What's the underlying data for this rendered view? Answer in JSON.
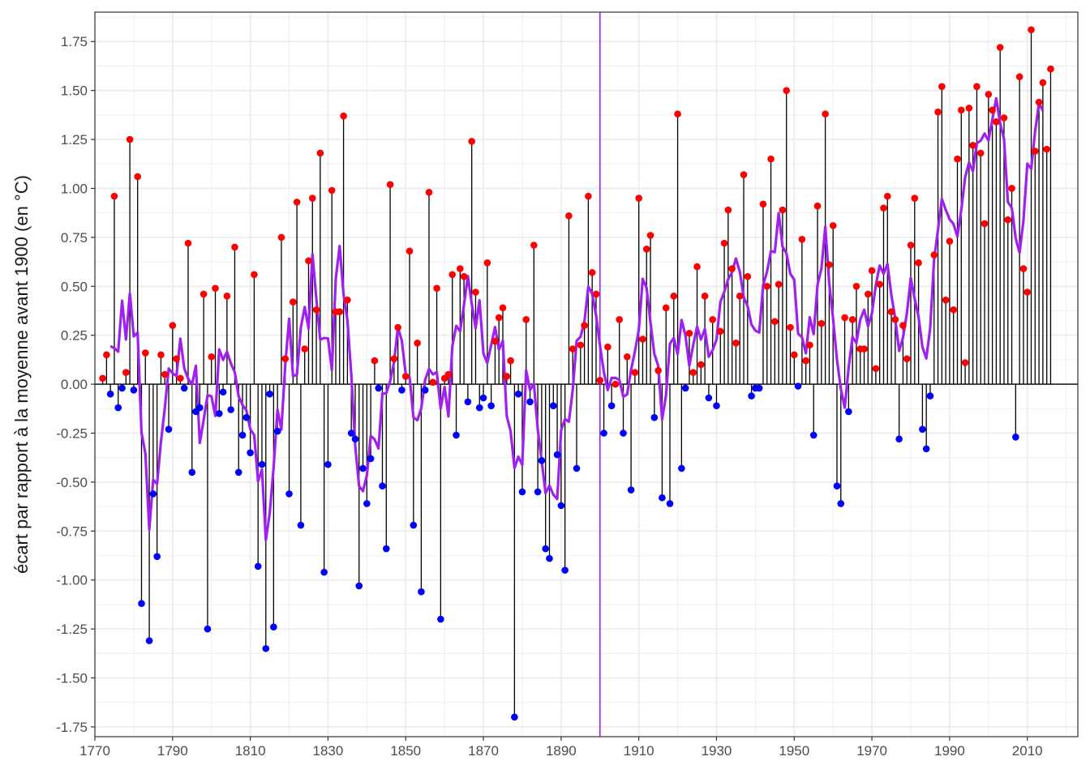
{
  "chart_data": {
    "type": "lollipop",
    "title": "",
    "xlabel": "",
    "ylabel": "écart par rapport à la moyenne avant 1900 (en °C)",
    "xlim": [
      1770,
      2023
    ],
    "ylim": [
      -1.8,
      1.9
    ],
    "x_ticks": [
      "1770",
      "1790",
      "1810",
      "1830",
      "1850",
      "1870",
      "1890",
      "1910",
      "1930",
      "1950",
      "1970",
      "1990",
      "2010"
    ],
    "y_ticks": [
      "1.75",
      "1.50",
      "1.25",
      "1.00",
      "0.75",
      "0.50",
      "0.25",
      "0.00",
      "-0.25",
      "-0.50",
      "-0.75",
      "-1.00",
      "-1.25",
      "-1.50",
      "-1.75"
    ],
    "reference_year": 1900,
    "grid": true,
    "colors": {
      "positive": "#ff0000",
      "negative": "#0000ff",
      "stem": "#000000",
      "moving_average": "#a020f0",
      "reference_line": "#a020f0",
      "grid": "#ebebeb"
    },
    "moving_average_window": 5,
    "years_start": 1772,
    "values": [
      0.03,
      0.15,
      -0.05,
      0.96,
      -0.12,
      -0.02,
      0.06,
      1.25,
      -0.03,
      1.06,
      -1.12,
      0.16,
      -1.31,
      -0.56,
      -0.88,
      0.15,
      0.05,
      -0.23,
      0.3,
      0.13,
      0.03,
      -0.02,
      0.72,
      -0.45,
      -0.14,
      -0.12,
      0.46,
      -1.25,
      0.14,
      0.49,
      -0.15,
      -0.04,
      0.45,
      -0.13,
      0.7,
      -0.45,
      -0.26,
      -0.17,
      -0.35,
      0.56,
      -0.93,
      -0.41,
      -1.35,
      -0.05,
      -1.24,
      -0.24,
      0.75,
      0.13,
      -0.56,
      0.42,
      0.93,
      -0.72,
      0.18,
      0.63,
      0.95,
      0.38,
      1.18,
      -0.96,
      -0.41,
      0.99,
      0.37,
      0.37,
      1.37,
      0.43,
      -0.25,
      -0.28,
      -1.03,
      -0.43,
      -0.61,
      -0.38,
      0.12,
      -0.02,
      -0.52,
      -0.84,
      1.02,
      0.13,
      0.29,
      -0.03,
      0.04,
      0.68,
      -0.72,
      0.21,
      -1.06,
      -0.03,
      0.98,
      0.01,
      0.49,
      -1.2,
      0.03,
      0.05,
      0.56,
      -0.26,
      0.59,
      0.55,
      -0.09,
      1.24,
      0.47,
      -0.12,
      -0.07,
      0.62,
      -0.11,
      0.22,
      0.34,
      0.39,
      0.04,
      0.12,
      -1.7,
      -0.05,
      -0.55,
      0.33,
      -0.09,
      0.71,
      -0.55,
      -0.39,
      -0.84,
      -0.89,
      -0.11,
      -0.36,
      -0.62,
      -0.95,
      0.86,
      0.18,
      -0.43,
      0.2,
      0.3,
      0.96,
      0.57,
      0.46,
      0.02,
      -0.25,
      0.19,
      -0.11,
      0.0,
      0.33,
      -0.25,
      0.14,
      -0.54,
      0.06,
      0.95,
      0.23,
      0.69,
      0.76,
      -0.17,
      0.07,
      -0.58,
      0.39,
      -0.61,
      0.45,
      1.38,
      -0.43,
      -0.02,
      0.26,
      0.06,
      0.6,
      0.1,
      0.45,
      -0.07,
      0.33,
      -0.11,
      0.27,
      0.72,
      0.89,
      0.59,
      0.21,
      0.45,
      1.07,
      0.55,
      -0.06,
      -0.02,
      -0.02,
      0.92,
      0.5,
      1.15,
      0.32,
      0.51,
      0.89,
      1.5,
      0.29,
      0.15,
      -0.01,
      0.74,
      0.12,
      0.2,
      -0.26,
      0.91,
      0.31,
      1.38,
      0.61,
      0.81,
      -0.52,
      -0.61,
      0.34,
      -0.14,
      0.33,
      0.5,
      0.18,
      0.18,
      0.46,
      0.58,
      0.08,
      0.51,
      0.9,
      0.96,
      0.37,
      0.33,
      -0.28,
      0.3,
      0.13,
      0.71,
      0.95,
      0.62,
      -0.23,
      -0.33,
      -0.06,
      0.66,
      1.39,
      1.52,
      0.43,
      0.73,
      0.38,
      1.15,
      1.4,
      0.11,
      1.41,
      1.22,
      1.52,
      1.18,
      0.82,
      1.48,
      1.4,
      1.34,
      1.72,
      1.36,
      0.84,
      1.0,
      -0.27,
      1.57,
      0.59,
      0.47,
      1.81,
      1.19,
      1.44,
      1.54,
      1.2,
      1.61
    ]
  }
}
